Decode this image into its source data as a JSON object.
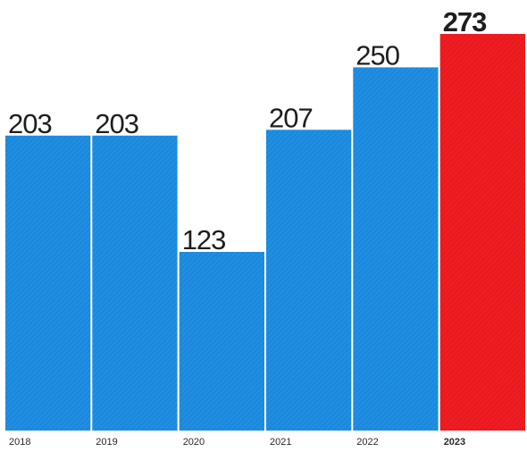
{
  "chart_data": {
    "type": "bar",
    "categories": [
      "2018",
      "2019",
      "2020",
      "2021",
      "2022",
      "2023"
    ],
    "values": [
      203,
      203,
      123,
      207,
      250,
      273
    ],
    "data_labels": [
      "203",
      "203",
      "123",
      "207",
      "250",
      "273"
    ],
    "highlight_category": "2023",
    "ylim": [
      0,
      273
    ],
    "grid": false,
    "legend": "none",
    "colors": {
      "bar": "#1f8fe3",
      "bar_hatch": "#1a78c8",
      "highlight": "#ef1d22",
      "highlight_hatch": "#d91419",
      "text": "#1e1e1e"
    }
  }
}
